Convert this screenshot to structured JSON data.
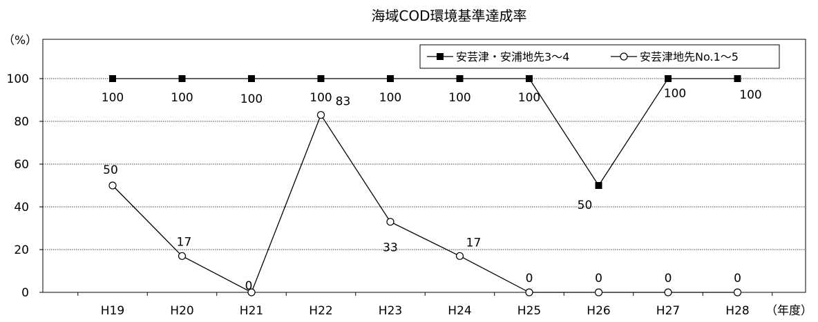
{
  "chart_data": {
    "type": "line",
    "title": "海域COD環境基準達成率",
    "ylabel": "（%）",
    "xlabel": "（年度）",
    "categories": [
      "H19",
      "H20",
      "H21",
      "H22",
      "H23",
      "H24",
      "H25",
      "H26",
      "H27",
      "H28"
    ],
    "ylim": [
      0,
      100
    ],
    "yticks": [
      0,
      20,
      40,
      60,
      80,
      100
    ],
    "grid": true,
    "legend_position": "top-right",
    "series": [
      {
        "name": "安芸津・安浦地先3～4",
        "marker": "filled-square",
        "values": [
          100,
          100,
          100,
          100,
          100,
          100,
          100,
          50,
          100,
          100
        ],
        "data_labels": [
          "100",
          "100",
          "100",
          "100",
          "100",
          "100",
          "100",
          "50",
          "100",
          "100"
        ]
      },
      {
        "name": "安芸津地先No.1～5",
        "marker": "open-circle",
        "values": [
          50,
          17,
          0,
          83,
          33,
          17,
          0,
          0,
          0,
          0
        ],
        "data_labels": [
          "50",
          "17",
          "0",
          "83",
          "33",
          "17",
          "0",
          "0",
          "0",
          "0"
        ]
      }
    ]
  }
}
